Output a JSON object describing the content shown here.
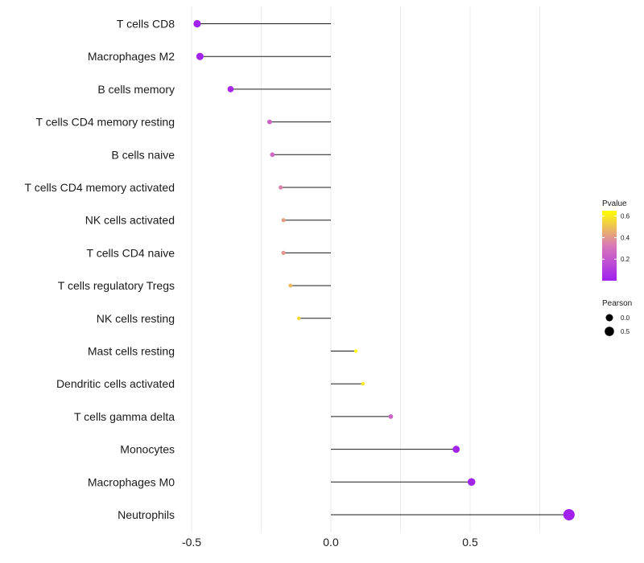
{
  "chart_data": {
    "type": "lollipop",
    "title": "",
    "xlabel": "",
    "ylabel": "",
    "xlim": [
      -0.5,
      0.85
    ],
    "xticks": [
      -0.5,
      0.0,
      0.5
    ],
    "xtick_labels": [
      "-0.5",
      "0.0",
      "0.5"
    ],
    "gridlines": [
      -0.5,
      -0.25,
      0.0,
      0.25,
      0.5,
      0.75
    ],
    "baseline": 0.0,
    "categories": [
      "T cells CD8",
      "Macrophages M2",
      "B cells memory",
      "T cells CD4 memory resting",
      "B cells naive",
      "T cells CD4 memory activated",
      "NK cells activated",
      "T cells CD4 naive",
      "T cells regulatory  Tregs ",
      "NK cells resting",
      "Mast cells resting",
      "Dendritic cells activated",
      "T cells gamma delta",
      "Monocytes",
      "Macrophages M0",
      "Neutrophils"
    ],
    "values": [
      -0.48,
      -0.47,
      -0.36,
      -0.22,
      -0.21,
      -0.18,
      -0.17,
      -0.17,
      -0.145,
      -0.115,
      0.09,
      0.115,
      0.215,
      0.45,
      0.505,
      0.855
    ],
    "pvalues": [
      0.005,
      0.01,
      0.03,
      0.25,
      0.27,
      0.35,
      0.42,
      0.4,
      0.48,
      0.56,
      0.65,
      0.6,
      0.25,
      0.02,
      0.015,
      0.005
    ],
    "color_legend": {
      "title": "Pvalue",
      "min": 0.0,
      "max": 0.65,
      "ticks": [
        0.2,
        0.4,
        0.6
      ],
      "tick_labels": [
        "0.2",
        "0.4",
        "0.6"
      ],
      "low_color": "#a020f0",
      "mid_color": "#d878b8",
      "high_color": "#ffff00"
    },
    "size_legend": {
      "title": "Pearson",
      "entries": [
        {
          "label": "0.0",
          "value": 0.0
        },
        {
          "label": "0.5",
          "value": 0.5
        }
      ]
    }
  }
}
